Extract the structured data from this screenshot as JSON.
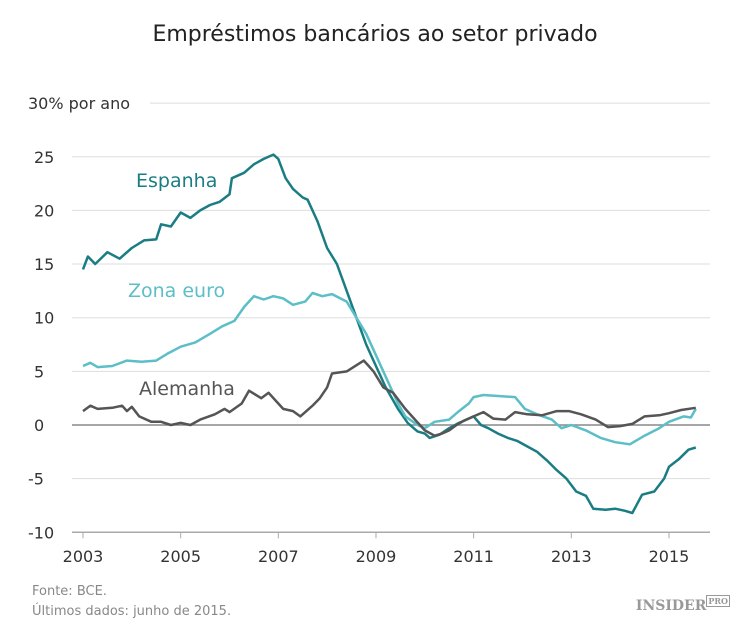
{
  "chart_data": {
    "type": "line",
    "title": "Empréstimos bancários ao setor privado",
    "ylabel_unit": "% por ano",
    "ylim": [
      -10,
      30
    ],
    "yticks": [
      -10,
      -5,
      0,
      5,
      10,
      15,
      20,
      25,
      30
    ],
    "ytick_labels": [
      "-10",
      "-5",
      "0",
      "5",
      "10",
      "15",
      "20",
      "25",
      "30% por ano"
    ],
    "xlim": [
      2003,
      2015.8
    ],
    "xticks": [
      2003,
      2005,
      2007,
      2009,
      2011,
      2013,
      2015
    ],
    "xtick_labels": [
      "2003",
      "2005",
      "2007",
      "2009",
      "2011",
      "2013",
      "2015"
    ],
    "grid": true,
    "series": [
      {
        "name": "Espanha",
        "color": "#1a7d84",
        "x": [
          2003.0,
          2003.1,
          2003.25,
          2003.5,
          2003.75,
          2004.0,
          2004.25,
          2004.5,
          2004.6,
          2004.8,
          2005.0,
          2005.2,
          2005.4,
          2005.6,
          2005.8,
          2006.0,
          2006.05,
          2006.3,
          2006.5,
          2006.7,
          2006.9,
          2007.0,
          2007.15,
          2007.3,
          2007.5,
          2007.6,
          2007.8,
          2008.0,
          2008.2,
          2008.4,
          2008.6,
          2008.8,
          2008.95,
          2009.2,
          2009.45,
          2009.65,
          2009.85,
          2010.0,
          2010.1,
          2010.3,
          2010.5,
          2010.7,
          2010.9,
          2011.0,
          2011.15,
          2011.3,
          2011.5,
          2011.7,
          2011.9,
          2012.1,
          2012.3,
          2012.5,
          2012.7,
          2012.9,
          2013.1,
          2013.3,
          2013.45,
          2013.7,
          2013.9,
          2014.1,
          2014.25,
          2014.45,
          2014.7,
          2014.9,
          2015.0,
          2015.2,
          2015.4,
          2015.55
        ],
        "y": [
          14.5,
          15.7,
          15.0,
          16.1,
          15.5,
          16.5,
          17.2,
          17.3,
          18.7,
          18.5,
          19.8,
          19.3,
          20.0,
          20.5,
          20.8,
          21.5,
          23.0,
          23.5,
          24.3,
          24.8,
          25.2,
          24.8,
          23.0,
          22.0,
          21.2,
          21.0,
          19.0,
          16.5,
          15.0,
          12.5,
          10.0,
          7.5,
          6.0,
          3.5,
          1.5,
          0.2,
          -0.6,
          -0.8,
          -1.2,
          -0.9,
          -0.3,
          0.2,
          0.6,
          0.8,
          0.0,
          -0.3,
          -0.8,
          -1.2,
          -1.5,
          -2.0,
          -2.5,
          -3.3,
          -4.2,
          -5.0,
          -6.2,
          -6.6,
          -7.8,
          -7.9,
          -7.8,
          -8.0,
          -8.2,
          -6.5,
          -6.2,
          -5.0,
          -3.9,
          -3.2,
          -2.3,
          -2.1
        ]
      },
      {
        "name": "Zona euro",
        "color": "#5cbec7",
        "x": [
          2003.0,
          2003.15,
          2003.3,
          2003.6,
          2003.9,
          2004.2,
          2004.5,
          2004.75,
          2005.0,
          2005.3,
          2005.6,
          2005.85,
          2006.1,
          2006.3,
          2006.5,
          2006.7,
          2006.9,
          2007.1,
          2007.3,
          2007.55,
          2007.7,
          2007.9,
          2008.1,
          2008.4,
          2008.6,
          2008.8,
          2009.0,
          2009.2,
          2009.45,
          2009.6,
          2009.85,
          2010.0,
          2010.2,
          2010.5,
          2010.7,
          2010.9,
          2011.0,
          2011.2,
          2011.5,
          2011.85,
          2012.05,
          2012.3,
          2012.6,
          2012.8,
          2013.0,
          2013.3,
          2013.6,
          2013.9,
          2014.2,
          2014.5,
          2014.8,
          2015.0,
          2015.3,
          2015.45,
          2015.55
        ],
        "y": [
          5.5,
          5.8,
          5.4,
          5.5,
          6.0,
          5.9,
          6.0,
          6.7,
          7.3,
          7.7,
          8.5,
          9.2,
          9.7,
          11.0,
          12.0,
          11.7,
          12.0,
          11.8,
          11.2,
          11.5,
          12.3,
          12.0,
          12.2,
          11.5,
          10.0,
          8.5,
          6.5,
          4.5,
          2.0,
          0.8,
          0.0,
          -0.3,
          0.3,
          0.5,
          1.3,
          2.0,
          2.6,
          2.8,
          2.7,
          2.6,
          1.5,
          1.0,
          0.5,
          -0.3,
          0.0,
          -0.5,
          -1.2,
          -1.6,
          -1.8,
          -1.0,
          -0.3,
          0.3,
          0.8,
          0.7,
          1.5
        ]
      },
      {
        "name": "Alemanha",
        "color": "#555555",
        "x": [
          2003.0,
          2003.15,
          2003.3,
          2003.6,
          2003.8,
          2003.9,
          2004.0,
          2004.15,
          2004.4,
          2004.6,
          2004.8,
          2005.0,
          2005.2,
          2005.4,
          2005.7,
          2005.9,
          2006.0,
          2006.25,
          2006.4,
          2006.65,
          2006.8,
          2007.0,
          2007.1,
          2007.3,
          2007.45,
          2007.7,
          2007.85,
          2008.0,
          2008.1,
          2008.4,
          2008.75,
          2008.85,
          2008.95,
          2009.15,
          2009.35,
          2009.6,
          2009.8,
          2010.0,
          2010.2,
          2010.35,
          2010.5,
          2010.65,
          2010.8,
          2011.0,
          2011.2,
          2011.4,
          2011.65,
          2011.85,
          2012.1,
          2012.4,
          2012.7,
          2012.95,
          2013.2,
          2013.5,
          2013.75,
          2014.0,
          2014.25,
          2014.5,
          2014.8,
          2015.0,
          2015.25,
          2015.55
        ],
        "y": [
          1.3,
          1.8,
          1.5,
          1.6,
          1.8,
          1.3,
          1.7,
          0.8,
          0.3,
          0.3,
          0.0,
          0.2,
          0.0,
          0.5,
          1.0,
          1.5,
          1.2,
          2.0,
          3.2,
          2.5,
          3.0,
          2.0,
          1.5,
          1.3,
          0.8,
          1.8,
          2.5,
          3.5,
          4.8,
          5.0,
          6.0,
          5.5,
          5.0,
          3.5,
          3.0,
          1.5,
          0.5,
          -0.5,
          -1.0,
          -0.8,
          -0.5,
          0.0,
          0.4,
          0.8,
          1.2,
          0.6,
          0.5,
          1.2,
          1.0,
          0.9,
          1.3,
          1.3,
          1.0,
          0.5,
          -0.2,
          -0.1,
          0.1,
          0.8,
          0.9,
          1.1,
          1.4,
          1.6
        ]
      }
    ]
  },
  "footer": {
    "source": "Fonte: BCE.",
    "latest": "Últimos dados: junho de 2015.",
    "logo": "INSIDER",
    "logo_badge": "PRO"
  }
}
